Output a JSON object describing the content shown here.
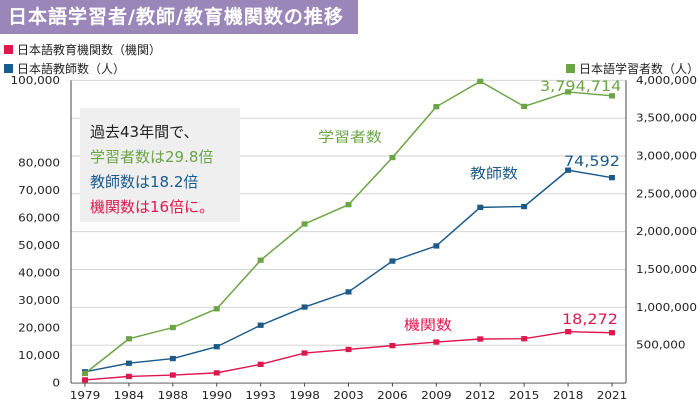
{
  "header": {
    "title": "日本語学習者/教師/教育機関数の推移"
  },
  "legend": {
    "institutions": "日本語教育機関数（機関）",
    "teachers": "日本語教師数（人）",
    "learners": "日本語学習者数（人）"
  },
  "summary": {
    "line1": "過去43年間で、",
    "line2": "学習者数は29.8倍",
    "line3": "教師数は18.2倍",
    "line4": "機関数は16倍に。"
  },
  "series_labels": {
    "learners": "学習者数",
    "teachers": "教師数",
    "institutions": "機関数"
  },
  "end_labels": {
    "learners": "3,794,714",
    "teachers": "74,592",
    "institutions": "18,272"
  },
  "colors": {
    "banner": "#9a86b9",
    "institutions": "#e0174e",
    "teachers": "#1b5a8a",
    "learners": "#6aa444",
    "grid": "#cfcfcf"
  },
  "chart_data": {
    "type": "line",
    "x": [
      "1979",
      "1984",
      "1988",
      "1990",
      "1993",
      "1998",
      "2003",
      "2006",
      "2009",
      "2012",
      "2015",
      "2018",
      "2021"
    ],
    "left_axis": {
      "ylim": [
        0,
        100000
      ],
      "ticks": [
        "0",
        "10,000",
        "20,000",
        "30,000",
        "40,000",
        "50,000",
        "60,000",
        "70,000",
        "80,000",
        "100,000"
      ]
    },
    "right_axis": {
      "ylim": [
        0,
        4000000
      ],
      "ticks": [
        "500,000",
        "1,000,000",
        "1,500,000",
        "2,000,000",
        "2,500,000",
        "3,000,000",
        "3,500,000",
        "4,000,000"
      ]
    },
    "series": [
      {
        "name": "日本語教育機関数（機関）",
        "axis": "left",
        "values": [
          1145,
          2400,
          2900,
          3700,
          6800,
          10900,
          12200,
          13600,
          14900,
          16000,
          16100,
          18661,
          18272
        ]
      },
      {
        "name": "日本語教師数（人）",
        "axis": "left",
        "values": [
          4100,
          7200,
          8900,
          13200,
          21000,
          27600,
          33100,
          44300,
          49800,
          63800,
          64100,
          77300,
          74592
        ]
      },
      {
        "name": "日本語学習者数（人）",
        "axis": "right",
        "values": [
          127167,
          584900,
          733800,
          981400,
          1623500,
          2102100,
          2357000,
          2979800,
          3651200,
          3985700,
          3655000,
          3846800,
          3794714
        ]
      }
    ]
  }
}
